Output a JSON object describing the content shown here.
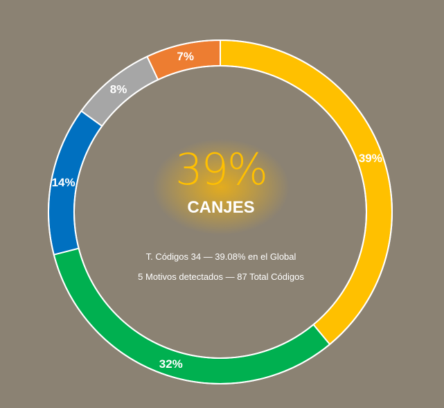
{
  "chart_data": {
    "type": "pie",
    "subtype": "donut",
    "slices": [
      {
        "label": "39%",
        "value": 39,
        "color": "#ffc000"
      },
      {
        "label": "32%",
        "value": 32,
        "color": "#00b050"
      },
      {
        "label": "14%",
        "value": 14,
        "color": "#0070c0"
      },
      {
        "label": "8%",
        "value": 8,
        "color": "#a6a6a6"
      },
      {
        "label": "7%",
        "value": 7,
        "color": "#ed7d31"
      }
    ],
    "legend": "none"
  },
  "center": {
    "percent": "39%",
    "title": "CANJES",
    "line1": "T. Códigos 34 — 39.08% en el Global",
    "line2": "5 Motivos detectados — 87 Total Códigos"
  },
  "colors": {
    "background": "#8b8273",
    "separator": "#ffffff",
    "accent": "#ffc000"
  }
}
